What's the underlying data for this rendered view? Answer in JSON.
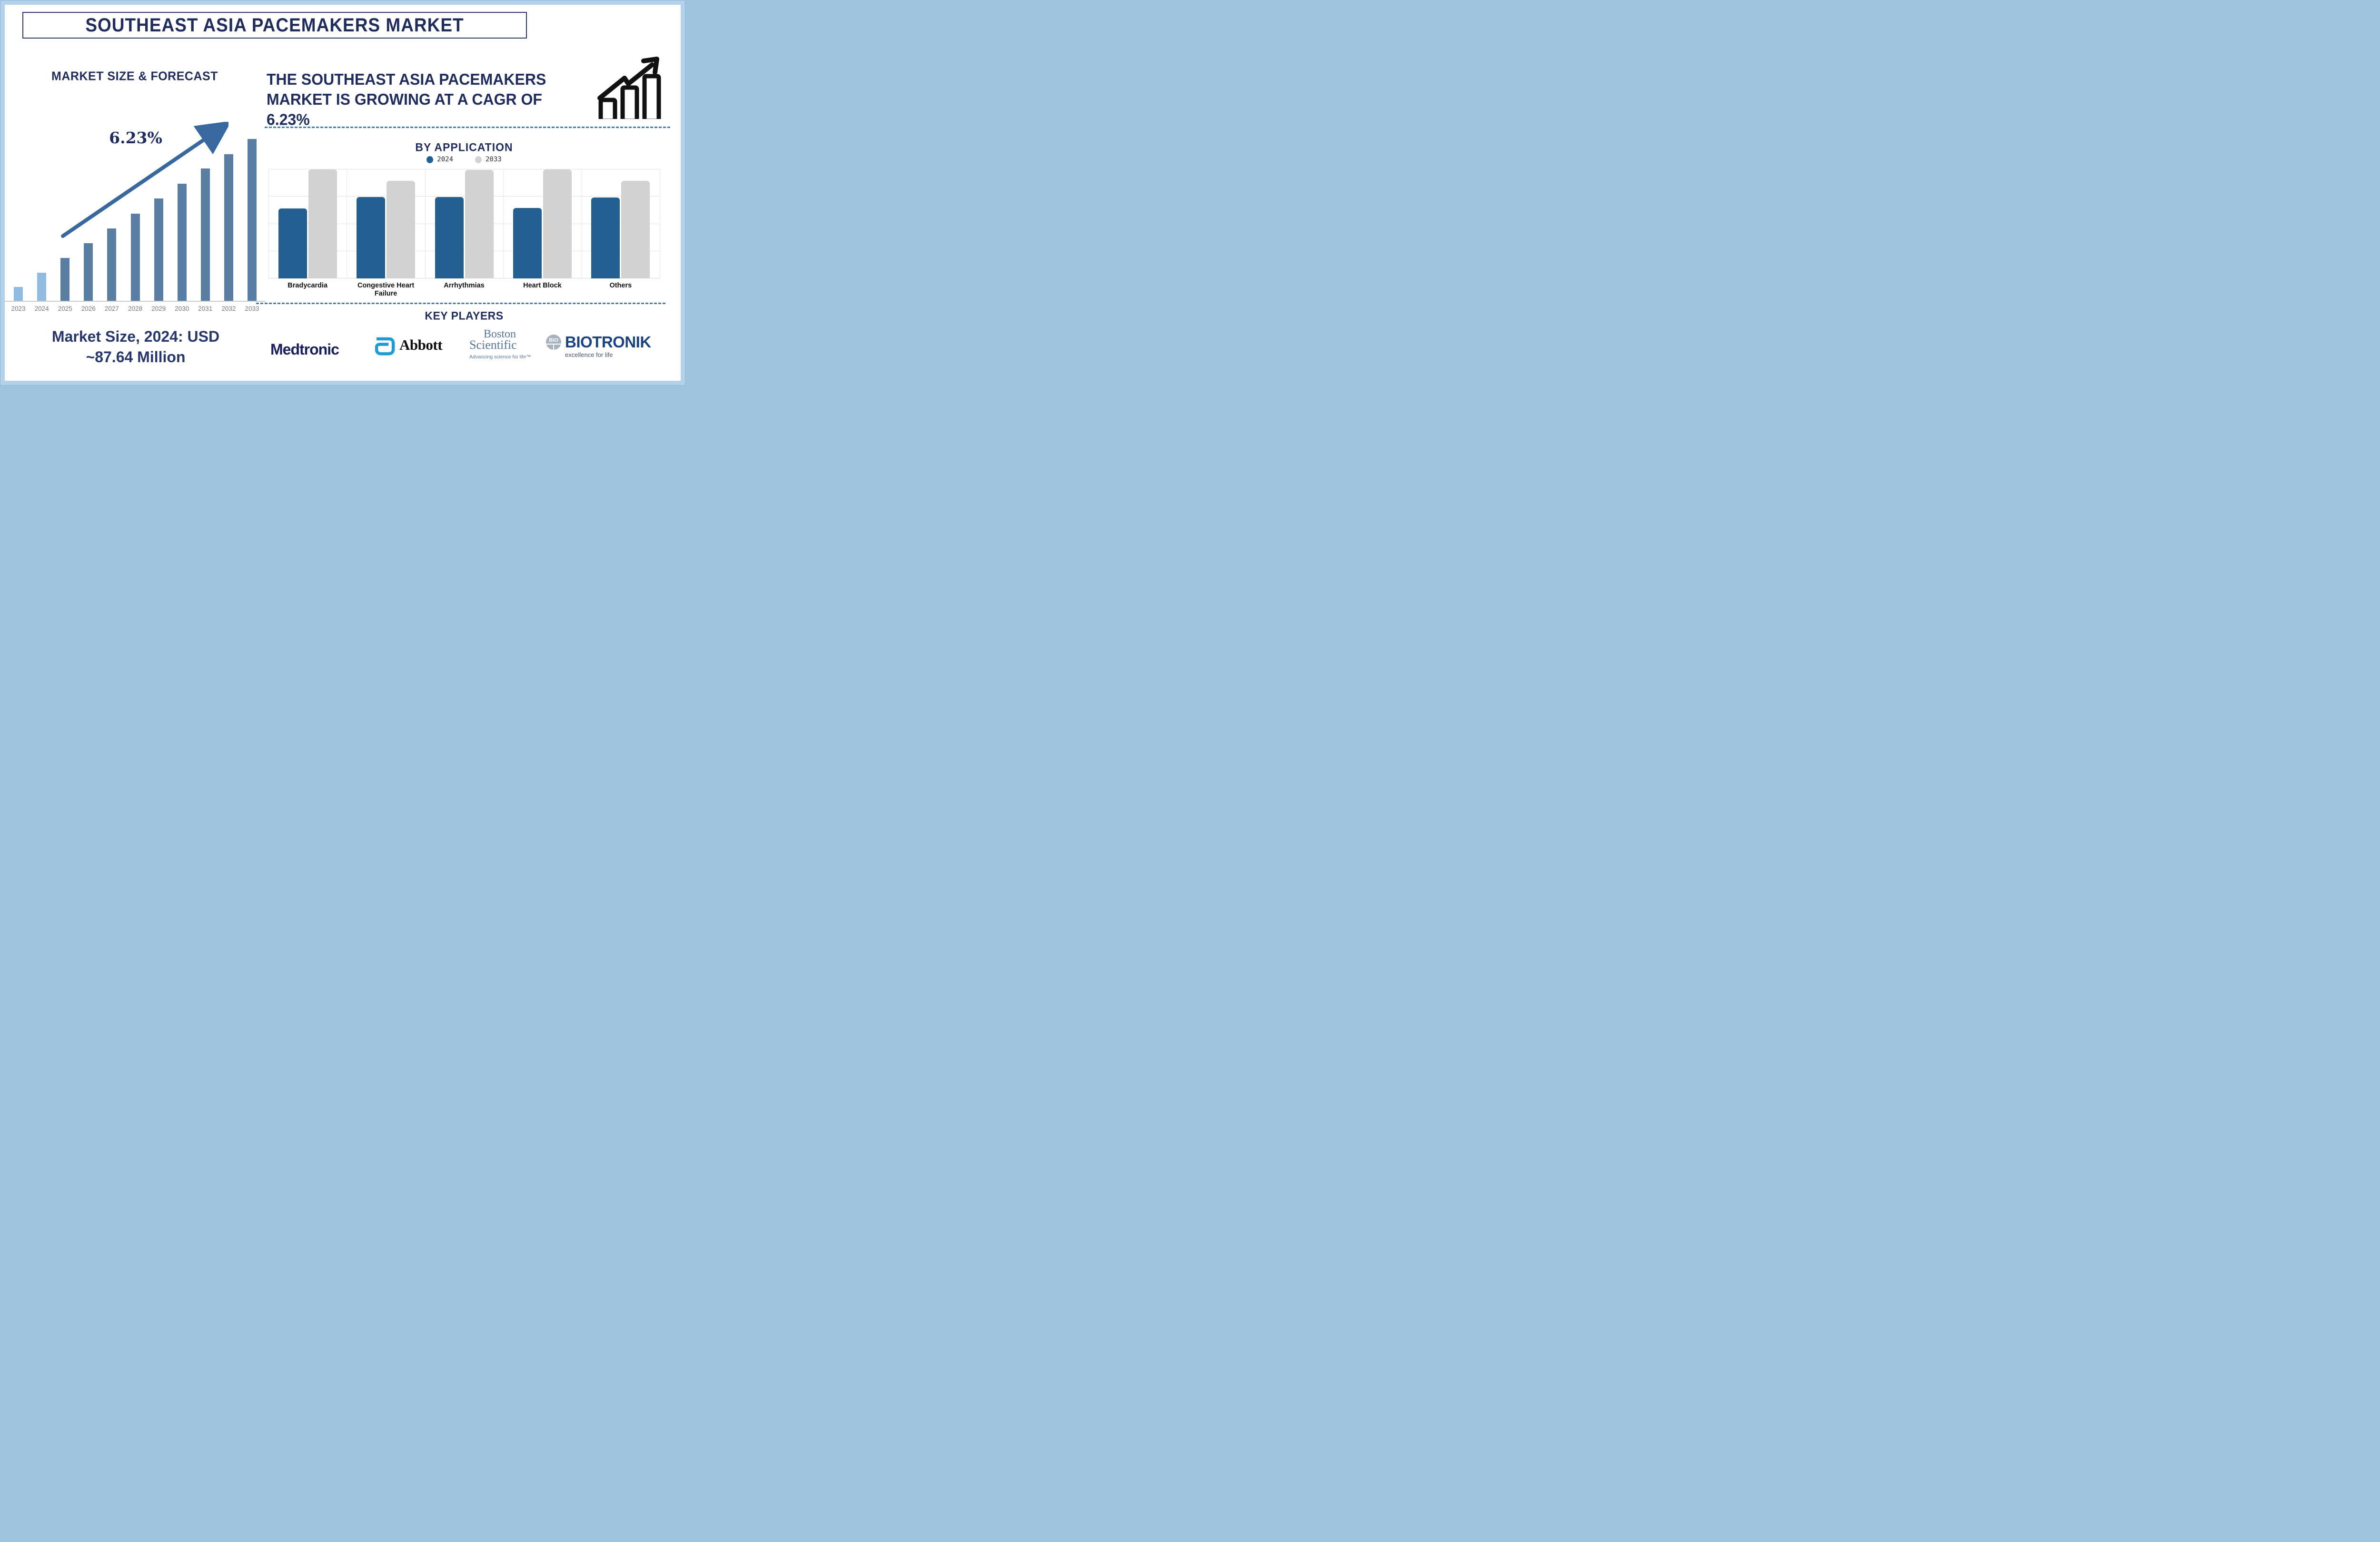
{
  "title_banner": "SOUTHEAST ASIA PACEMAKERS MARKET",
  "colors": {
    "navy_text": "#1f2c5c",
    "frame_blue": "#b5d1ea",
    "dashed_line": "#4679ac",
    "arrow_steel": "#38699e",
    "left_bar_light": "#8fbbe3",
    "left_bar_slate": "#5a7ea4",
    "right_bar_2024": "#235f90",
    "right_bar_2033": "#d2d2d2",
    "gridline": "#e4e4e4",
    "year_label_gray": "#7a7a7a"
  },
  "left_panel": {
    "heading": "MARKET SIZE & FORECAST",
    "cagr_label": "6.23%",
    "footer_line1": "Market Size, 2024: USD",
    "footer_line2": "~87.64 Million"
  },
  "right_panel": {
    "headline_lines": [
      "THE SOUTHEAST ASIA PACEMAKERS",
      "MARKET IS GROWING AT A CAGR OF",
      "6.23%"
    ],
    "by_application_title": "BY APPLICATION",
    "key_players_title": "KEY PLAYERS"
  },
  "players": {
    "medtronic": {
      "wordmark": "Medtronic",
      "color": "#1a1f5e"
    },
    "abbott": {
      "wordmark": "Abbott",
      "symbol_color": "#1f9bd7"
    },
    "boston_scientific": {
      "word1": "Boston",
      "word2": "Scientific",
      "tagline": "Advancing science for life™",
      "color": "#567799"
    },
    "biotronik": {
      "emblem_text": "BIO",
      "wordmark": "BIOTRONIK",
      "tagline": "excellence for life",
      "color": "#1a4480"
    }
  },
  "chart_data": [
    {
      "type": "bar",
      "title": "MARKET SIZE & FORECAST",
      "categories": [
        "2023",
        "2024",
        "2025",
        "2026",
        "2027",
        "2028",
        "2029",
        "2030",
        "2031",
        "2032",
        "2033"
      ],
      "values_relative_pct": [
        8.7,
        17.6,
        26.6,
        35.8,
        44.8,
        54.0,
        63.3,
        72.5,
        81.7,
        90.7,
        100
      ],
      "annotations": {
        "cagr": "6.23%",
        "market_size_2024": "USD ~87.64 Million"
      },
      "bar_color_2023_2024": "#8fbbe3",
      "bar_color_2025_2033": "#5a7ea4",
      "xlabel": "",
      "ylabel": "",
      "grid": false,
      "y_axis_visible": false
    },
    {
      "type": "bar",
      "subtype": "grouped",
      "title": "BY APPLICATION",
      "categories": [
        "Bradycardia",
        "Congestive Heart Failure",
        "Arrhythmias",
        "Heart Block",
        "Others"
      ],
      "series": [
        {
          "name": "2024",
          "color": "#235f90",
          "values_relative_pct": [
            64,
            74.5,
            74.5,
            64.5,
            74.3
          ]
        },
        {
          "name": "2033",
          "color": "#d2d2d2",
          "values_relative_pct": [
            100,
            89.7,
            99.5,
            99.8,
            89.5
          ]
        }
      ],
      "legend_position": "top",
      "grid": true,
      "y_axis_visible": false,
      "xlabel": "",
      "ylabel": ""
    }
  ]
}
